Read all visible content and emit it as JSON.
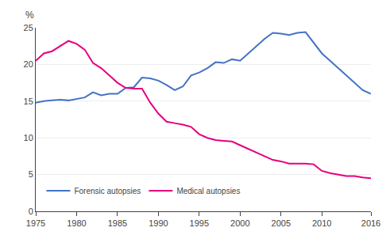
{
  "chart_data": {
    "type": "line",
    "x": [
      1975,
      1976,
      1977,
      1978,
      1979,
      1980,
      1981,
      1982,
      1983,
      1984,
      1985,
      1986,
      1987,
      1988,
      1989,
      1990,
      1991,
      1992,
      1993,
      1994,
      1995,
      1996,
      1997,
      1998,
      1999,
      2000,
      2001,
      2002,
      2003,
      2004,
      2005,
      2006,
      2007,
      2008,
      2009,
      2010,
      2011,
      2012,
      2013,
      2014,
      2015,
      2016
    ],
    "series": [
      {
        "name": "Forensic autopsies",
        "color": "#4472c4",
        "values": [
          14.8,
          15.0,
          15.1,
          15.2,
          15.1,
          15.3,
          15.5,
          16.2,
          15.8,
          16.0,
          16.0,
          16.8,
          16.9,
          18.2,
          18.1,
          17.8,
          17.2,
          16.5,
          17.0,
          18.5,
          18.9,
          19.5,
          20.3,
          20.2,
          20.7,
          20.5,
          21.5,
          22.5,
          23.5,
          24.3,
          24.2,
          24.0,
          24.3,
          24.4,
          23.0,
          21.5,
          20.5,
          19.5,
          18.5,
          17.5,
          16.5,
          16.0
        ]
      },
      {
        "name": "Medical autopsies",
        "color": "#e6007e",
        "values": [
          20.5,
          21.5,
          21.8,
          22.5,
          23.2,
          22.8,
          22.0,
          20.2,
          19.5,
          18.5,
          17.5,
          16.8,
          16.7,
          16.7,
          14.8,
          13.3,
          12.2,
          12.0,
          11.8,
          11.5,
          10.5,
          10.0,
          9.7,
          9.6,
          9.5,
          9.0,
          8.5,
          8.0,
          7.5,
          7.0,
          6.8,
          6.5,
          6.5,
          6.5,
          6.4,
          5.5,
          5.2,
          5.0,
          4.8,
          4.8,
          4.6,
          4.5
        ]
      }
    ],
    "xlim": [
      1975,
      2016
    ],
    "xticks": [
      1975,
      1980,
      1985,
      1990,
      1995,
      2000,
      2005,
      2010,
      2016
    ],
    "ylim": [
      0,
      25
    ],
    "yticks": [
      0,
      5,
      10,
      15,
      20,
      25
    ],
    "ylabel": "%",
    "grid": "y",
    "legend": "lower left"
  }
}
